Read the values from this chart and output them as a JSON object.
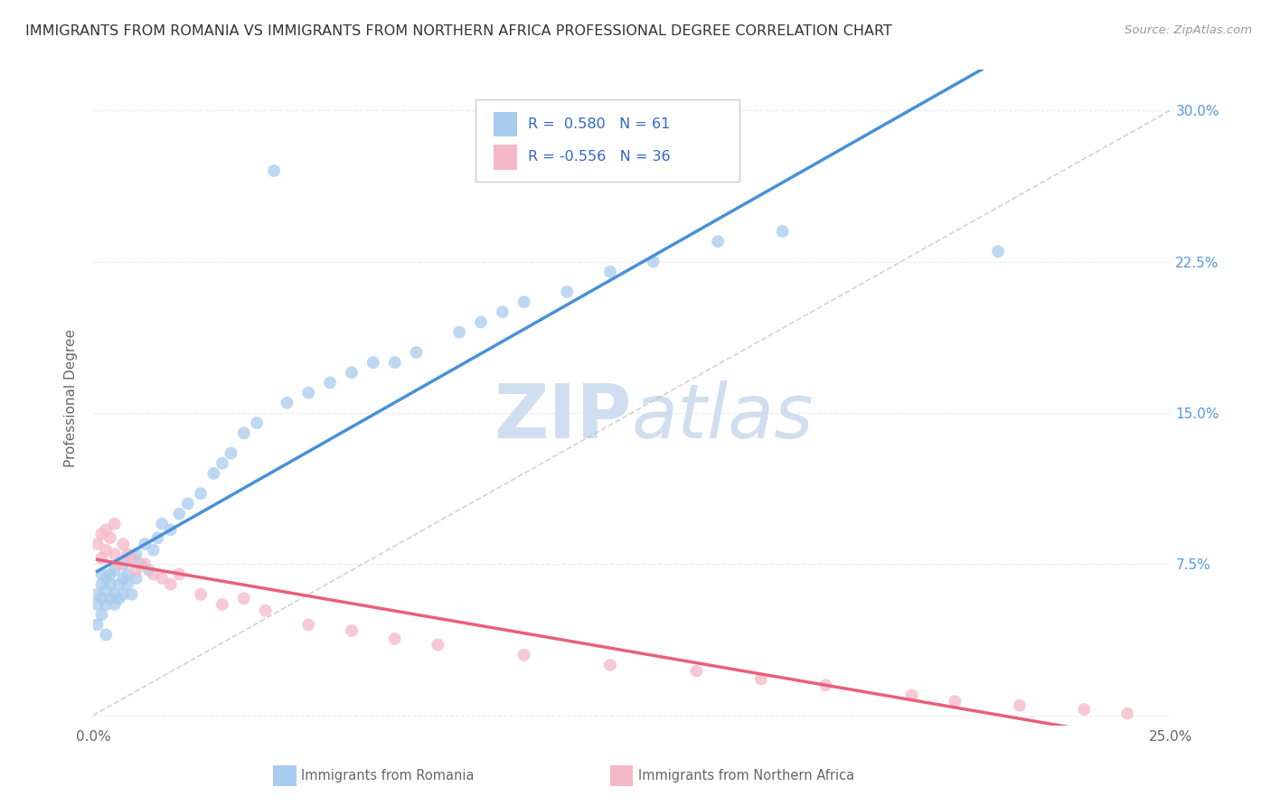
{
  "title": "IMMIGRANTS FROM ROMANIA VS IMMIGRANTS FROM NORTHERN AFRICA PROFESSIONAL DEGREE CORRELATION CHART",
  "source": "Source: ZipAtlas.com",
  "ylabel": "Professional Degree",
  "xlim": [
    0.0,
    0.25
  ],
  "ylim": [
    -0.005,
    0.32
  ],
  "blue_color": "#A8CCEE",
  "pink_color": "#F5B8C8",
  "trend_blue": "#4A90D9",
  "trend_pink": "#E8607A",
  "ref_line_color": "#C8C8C8",
  "watermark_color": "#D0DFF0",
  "background_color": "#FFFFFF",
  "grid_color": "#EBEBEB",
  "tick_color": "#5599DD",
  "axis_label_color": "#666666",
  "title_color": "#333333",
  "source_color": "#999999",
  "legend_text_color": "#3366CC",
  "legend_border_color": "#CCCCCC",
  "bottom_label_color": "#666666"
}
